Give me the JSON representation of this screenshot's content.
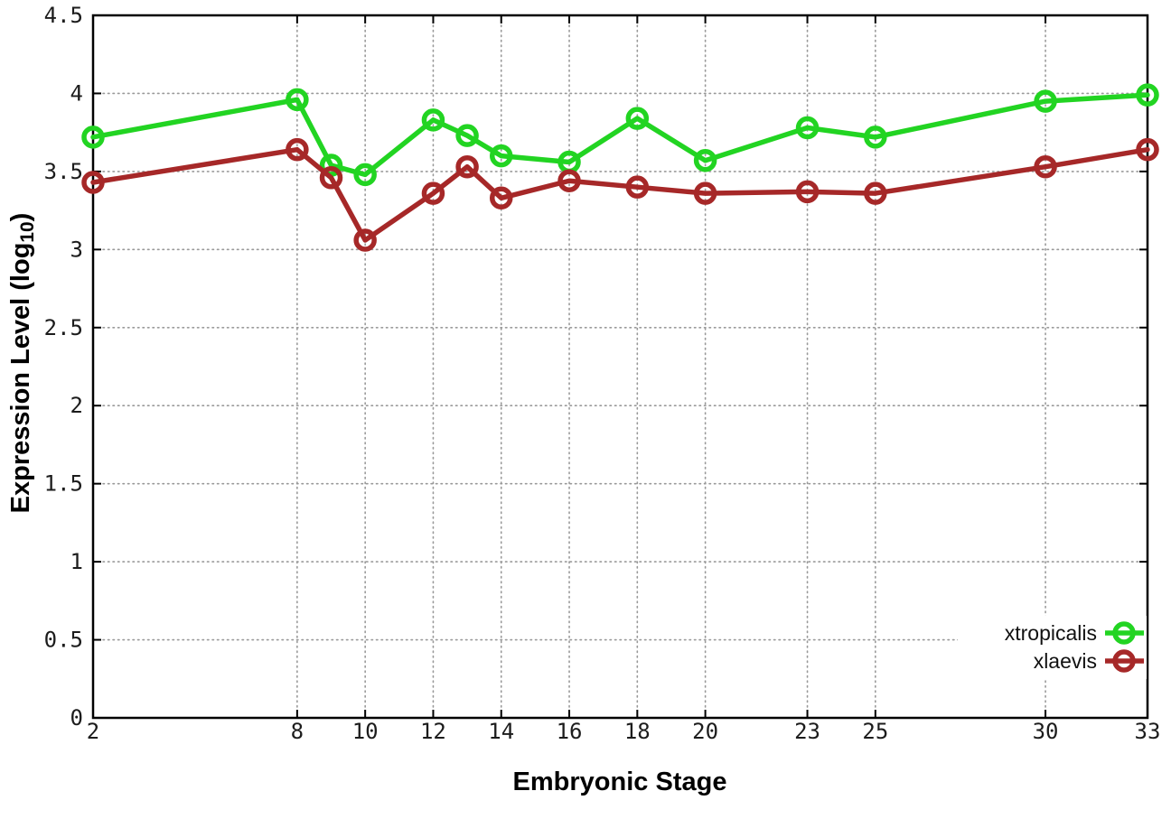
{
  "chart_data": {
    "type": "line",
    "title": "",
    "xlabel": "Embryonic Stage",
    "ylabel": "Expression Level (log10)",
    "ylabel_parts": {
      "pre": "Expression Level (log",
      "sub": "10",
      "post": ")"
    },
    "x": [
      2,
      8,
      9,
      10,
      12,
      13,
      14,
      16,
      18,
      20,
      23,
      25,
      30,
      33
    ],
    "series": [
      {
        "name": "xtropicalis",
        "color": "#22d422",
        "values": [
          3.72,
          3.96,
          3.54,
          3.48,
          3.83,
          3.73,
          3.6,
          3.56,
          3.84,
          3.57,
          3.78,
          3.72,
          3.95,
          3.99
        ]
      },
      {
        "name": "xlaevis",
        "color": "#a62828",
        "values": [
          3.43,
          3.64,
          3.46,
          3.06,
          3.36,
          3.53,
          3.33,
          3.44,
          3.4,
          3.36,
          3.37,
          3.36,
          3.53,
          3.64
        ]
      }
    ],
    "xlim": [
      2,
      33
    ],
    "ylim": [
      0,
      4.5
    ],
    "x_ticks": [
      2,
      8,
      10,
      12,
      14,
      16,
      18,
      20,
      23,
      25,
      30,
      33
    ],
    "x_tick_labels": [
      "2",
      "8",
      "10",
      "12",
      "14",
      "16",
      "18",
      "20",
      "23",
      "25",
      "30",
      "33"
    ],
    "y_ticks": [
      0,
      0.5,
      1,
      1.5,
      2,
      2.5,
      3,
      3.5,
      4,
      4.5
    ],
    "y_tick_labels": [
      "0",
      "0.5",
      "1",
      "1.5",
      "2",
      "2.5",
      "3",
      "3.5",
      "4",
      "4.5"
    ],
    "grid": true,
    "legend_position": "bottom-right",
    "legend_entries": [
      "xtropicalis",
      "xlaevis"
    ],
    "style_colors": {
      "background": "#ffffff",
      "border": "#000000",
      "grid": "#999999",
      "tick_text": "#1c1c1c"
    }
  }
}
